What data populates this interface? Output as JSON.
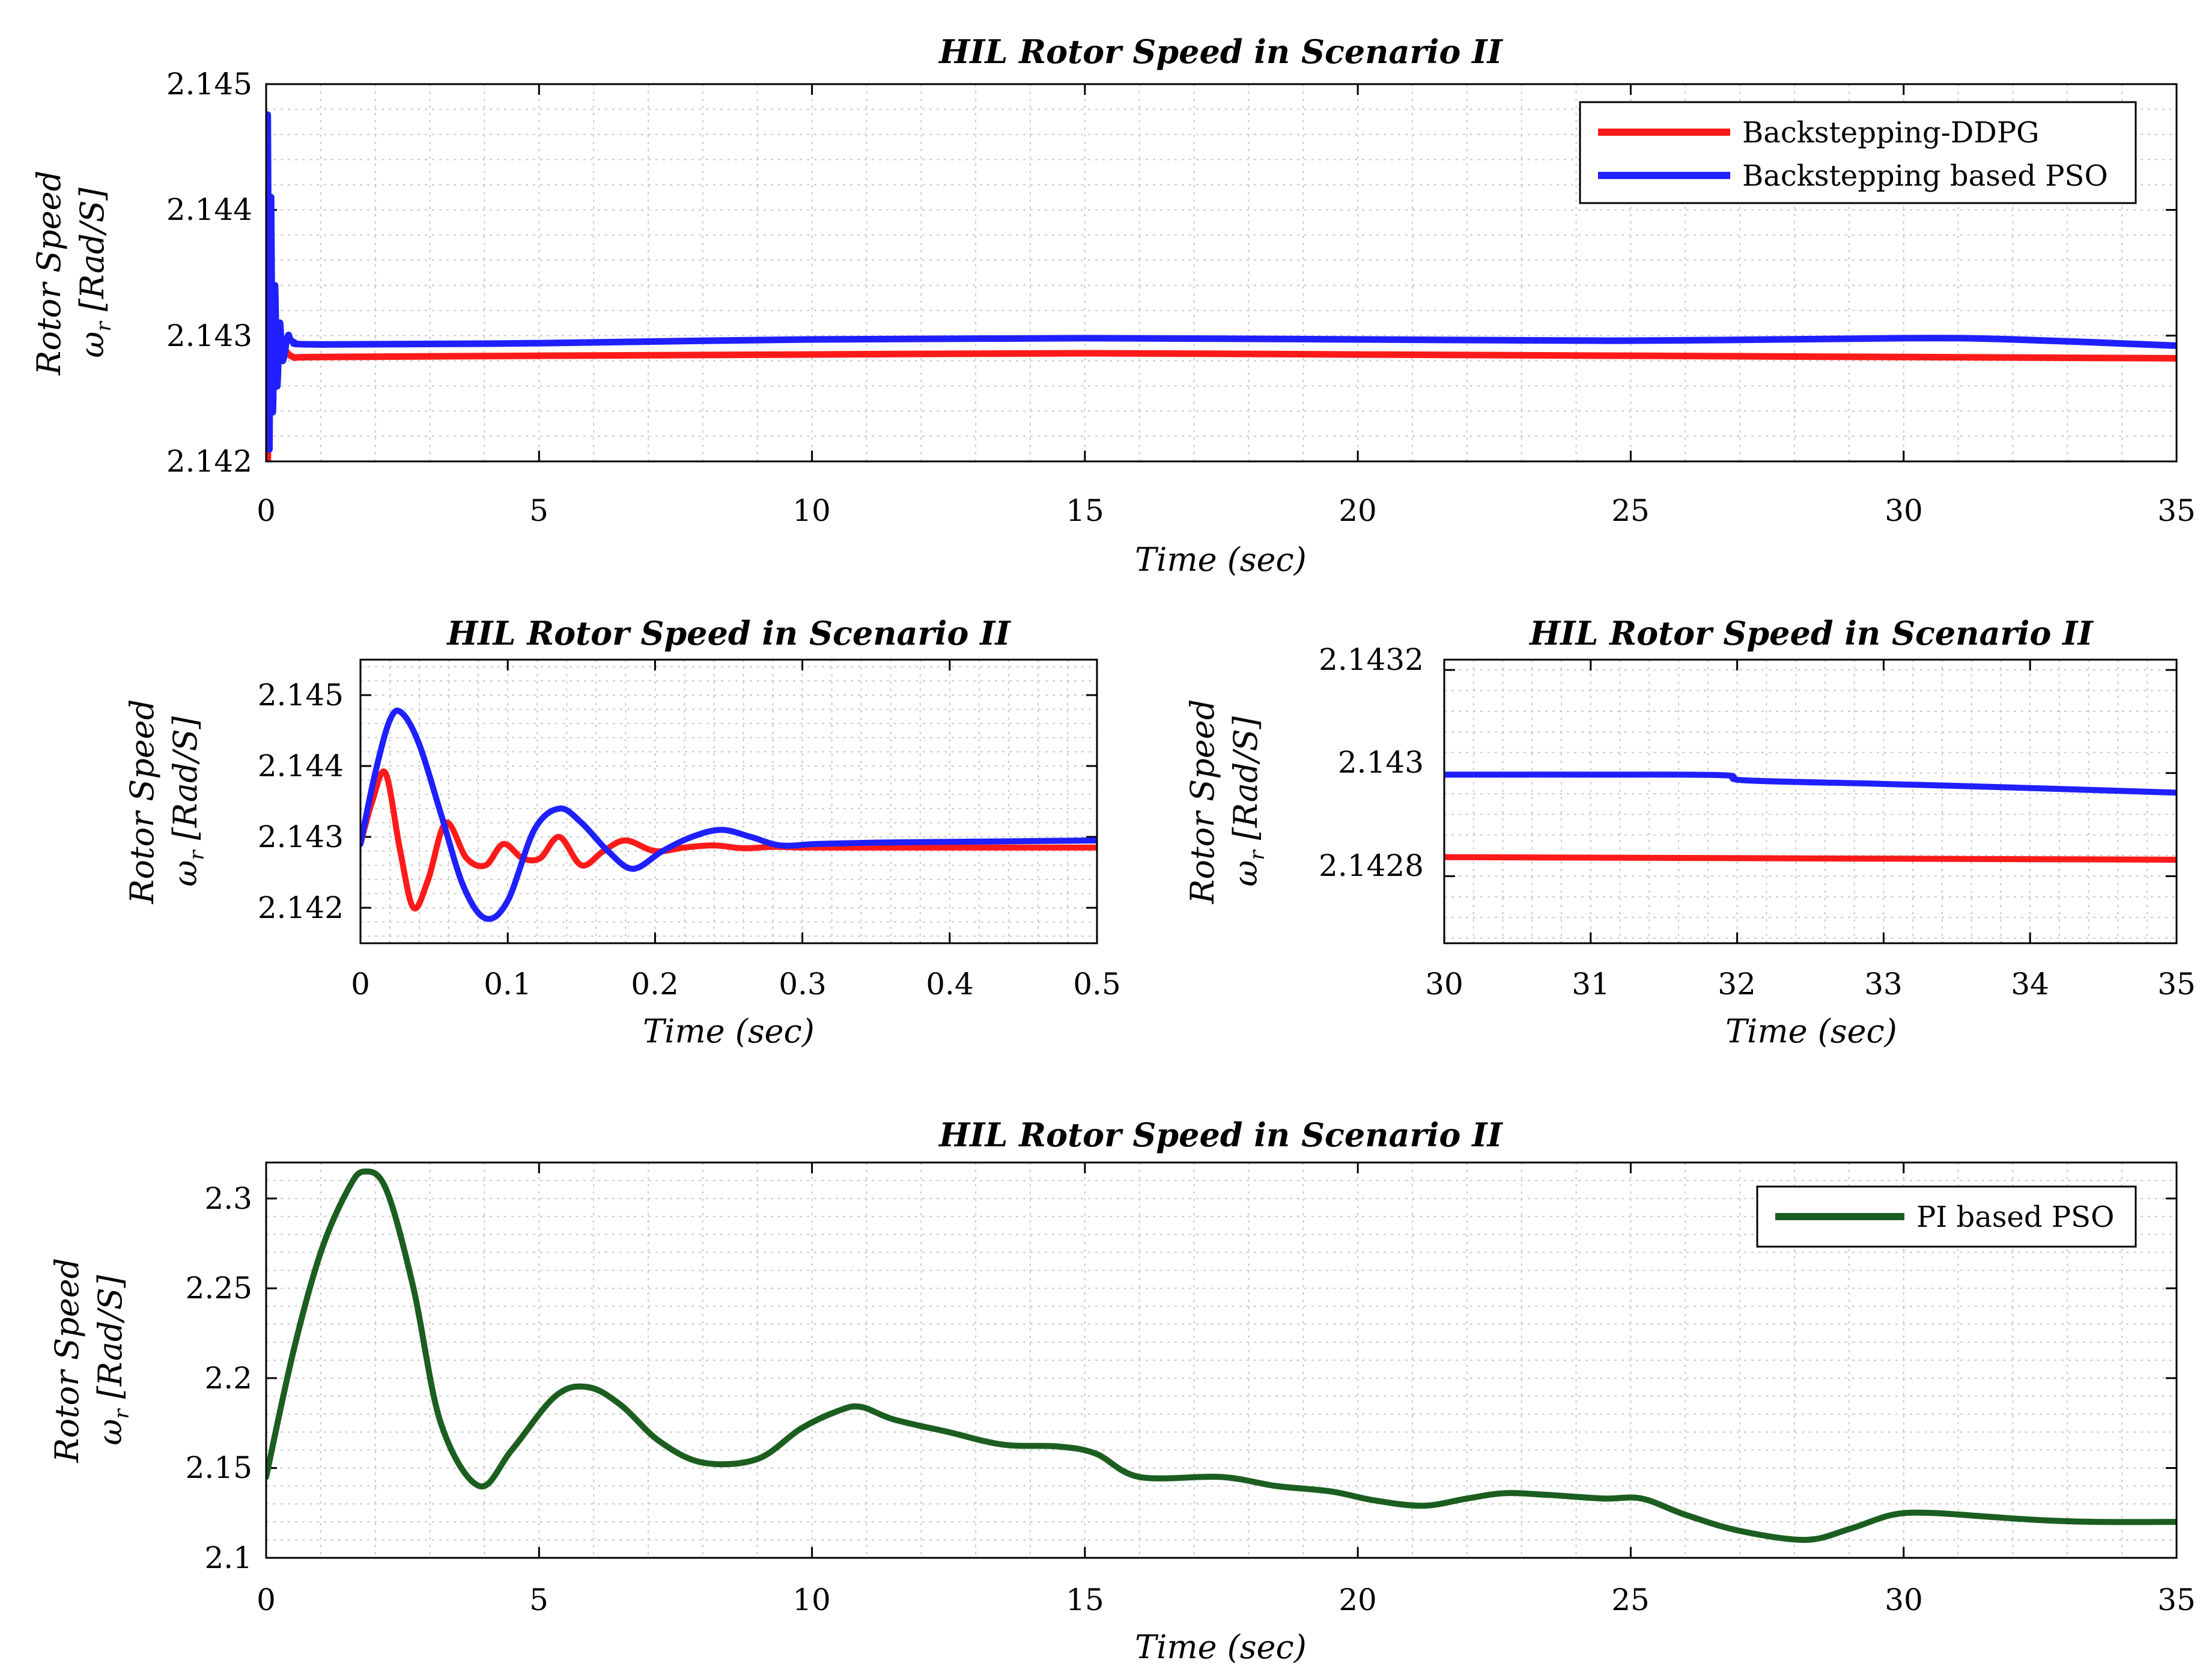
{
  "colors": {
    "series_red": "#ff1a1a",
    "series_blue": "#1f1fff",
    "series_green": "#1b5e20",
    "axis": "#000000",
    "grid": "#c8c8c8"
  },
  "chart_data": [
    {
      "id": "top",
      "type": "line",
      "title": "HIL Rotor Speed in Scenario II",
      "xlabel": "Time (sec)",
      "ylabel": "Rotor Speed",
      "ylabel2": "ω",
      "ylabel2_sub": "r",
      "ylabel2_unit": " [Rad/S]",
      "xlim": [
        0,
        35
      ],
      "ylim": [
        2.142,
        2.145
      ],
      "xticks": [
        0,
        5,
        10,
        15,
        20,
        25,
        30,
        35
      ],
      "xtick_labels": [
        "0",
        "5",
        "10",
        "15",
        "20",
        "25",
        "30",
        "35"
      ],
      "yticks": [
        2.142,
        2.143,
        2.144,
        2.145
      ],
      "ytick_labels": [
        "2.142",
        "2.143",
        "2.144",
        "2.145"
      ],
      "grid": true,
      "legend_position": "top-right",
      "series": [
        {
          "name": "Backstepping-DDPG",
          "color": "#ff1a1a",
          "x": [
            0,
            0.03,
            0.06,
            0.1,
            0.15,
            0.2,
            0.3,
            0.5,
            1,
            5,
            10,
            15,
            20,
            25,
            30,
            35
          ],
          "y": [
            2.1429,
            2.142,
            2.1433,
            2.1426,
            2.1431,
            2.1428,
            2.1429,
            2.14283,
            2.14283,
            2.14284,
            2.14285,
            2.14286,
            2.14285,
            2.14284,
            2.14283,
            2.14282
          ]
        },
        {
          "name": "Backstepping based PSO",
          "color": "#1f1fff",
          "x": [
            0,
            0.03,
            0.06,
            0.09,
            0.12,
            0.16,
            0.2,
            0.25,
            0.3,
            0.4,
            0.5,
            1,
            5,
            10,
            15,
            20,
            25,
            30,
            32,
            35
          ],
          "y": [
            2.1429,
            2.14475,
            2.1421,
            2.1441,
            2.1424,
            2.1434,
            2.1426,
            2.1431,
            2.1428,
            2.143,
            2.14295,
            2.14293,
            2.14294,
            2.14297,
            2.14298,
            2.14297,
            2.14296,
            2.14298,
            2.14297,
            2.14292
          ]
        }
      ]
    },
    {
      "id": "zoom-start",
      "type": "line",
      "title": "HIL Rotor Speed in Scenario II",
      "xlabel": "Time (sec)",
      "ylabel": "Rotor Speed",
      "ylabel2": "ω",
      "ylabel2_sub": "r",
      "ylabel2_unit": " [Rad/S]",
      "xlim": [
        0,
        0.5
      ],
      "ylim": [
        2.1415,
        2.1455
      ],
      "xticks": [
        0,
        0.1,
        0.2,
        0.3,
        0.4,
        0.5
      ],
      "xtick_labels": [
        "0",
        "0.1",
        "0.2",
        "0.3",
        "0.4",
        "0.5"
      ],
      "yticks": [
        2.142,
        2.143,
        2.144,
        2.145
      ],
      "ytick_labels": [
        "2.142",
        "2.143",
        "2.144",
        "2.145"
      ],
      "grid": true,
      "series": [
        {
          "name": "Backstepping-DDPG",
          "color": "#ff1a1a",
          "x": [
            0,
            0.008,
            0.017,
            0.027,
            0.036,
            0.046,
            0.058,
            0.072,
            0.085,
            0.097,
            0.11,
            0.122,
            0.135,
            0.15,
            0.165,
            0.18,
            0.2,
            0.22,
            0.24,
            0.26,
            0.28,
            0.3,
            0.35,
            0.4,
            0.45,
            0.5
          ],
          "y": [
            2.1429,
            2.1435,
            2.1439,
            2.1428,
            2.142,
            2.1424,
            2.1432,
            2.1427,
            2.1426,
            2.1429,
            2.1427,
            2.1427,
            2.143,
            2.1426,
            2.1428,
            2.14295,
            2.1428,
            2.14285,
            2.14288,
            2.14284,
            2.14286,
            2.14285,
            2.14285,
            2.14285,
            2.14285,
            2.14285
          ]
        },
        {
          "name": "Backstepping based PSO",
          "color": "#1f1fff",
          "x": [
            0,
            0.01,
            0.02,
            0.028,
            0.04,
            0.055,
            0.07,
            0.085,
            0.1,
            0.118,
            0.135,
            0.15,
            0.168,
            0.185,
            0.205,
            0.225,
            0.245,
            0.265,
            0.285,
            0.31,
            0.35,
            0.4,
            0.45,
            0.5
          ],
          "y": [
            2.1429,
            2.1439,
            2.14465,
            2.14475,
            2.1443,
            2.1433,
            2.1423,
            2.14185,
            2.1421,
            2.1431,
            2.1434,
            2.1432,
            2.1428,
            2.14255,
            2.1428,
            2.143,
            2.1431,
            2.143,
            2.14288,
            2.1429,
            2.14292,
            2.14293,
            2.14294,
            2.14295
          ]
        }
      ]
    },
    {
      "id": "zoom-end",
      "type": "line",
      "title": "HIL Rotor Speed in Scenario II",
      "xlabel": "Time (sec)",
      "ylabel": "Rotor Speed",
      "ylabel2": "ω",
      "ylabel2_sub": "r",
      "ylabel2_unit": " [Rad/S]",
      "xlim": [
        30,
        35
      ],
      "ylim": [
        2.14267,
        2.14322
      ],
      "xticks": [
        30,
        31,
        32,
        33,
        34,
        35
      ],
      "xtick_labels": [
        "30",
        "31",
        "32",
        "33",
        "34",
        "35"
      ],
      "yticks": [
        2.1428,
        2.143,
        2.1432
      ],
      "ytick_labels": [
        "2.1428",
        "2.143",
        "2.1432"
      ],
      "grid": true,
      "series": [
        {
          "name": "Backstepping-DDPG",
          "color": "#ff1a1a",
          "x": [
            30,
            31,
            32,
            33,
            34,
            35
          ],
          "y": [
            2.142837,
            2.142836,
            2.142835,
            2.142834,
            2.142833,
            2.142832
          ]
        },
        {
          "name": "Backstepping based PSO",
          "color": "#1f1fff",
          "x": [
            30,
            31,
            31.9,
            32.05,
            33,
            34,
            35
          ],
          "y": [
            2.142997,
            2.142997,
            2.142996,
            2.142986,
            2.142979,
            2.142971,
            2.142962
          ]
        }
      ]
    },
    {
      "id": "bottom",
      "type": "line",
      "title": "HIL Rotor Speed in Scenario II",
      "xlabel": "Time (sec)",
      "ylabel": "Rotor Speed",
      "ylabel2": "ω",
      "ylabel2_sub": "r",
      "ylabel2_unit": " [Rad/S]",
      "xlim": [
        0,
        35
      ],
      "ylim": [
        2.1,
        2.32
      ],
      "xticks": [
        0,
        5,
        10,
        15,
        20,
        25,
        30,
        35
      ],
      "xtick_labels": [
        "0",
        "5",
        "10",
        "15",
        "20",
        "25",
        "30",
        "35"
      ],
      "yticks": [
        2.1,
        2.15,
        2.2,
        2.25,
        2.3
      ],
      "ytick_labels": [
        "2.1",
        "2.15",
        "2.2",
        "2.25",
        "2.3"
      ],
      "grid": true,
      "legend_position": "top-right",
      "series": [
        {
          "name": "PI based PSO",
          "color": "#1b5e20",
          "x": [
            0,
            0.5,
            1.0,
            1.5,
            1.8,
            2.2,
            2.7,
            3.2,
            3.9,
            4.5,
            5.3,
            5.9,
            6.5,
            7.2,
            8.0,
            9.0,
            9.8,
            10.5,
            10.9,
            11.5,
            12.5,
            13.5,
            14.5,
            15.2,
            16.0,
            17.5,
            18.5,
            19.5,
            20.3,
            21.2,
            22.0,
            22.7,
            23.5,
            24.5,
            25.2,
            26.0,
            27.0,
            28.2,
            29.0,
            29.8,
            30.5,
            31.5,
            32.5,
            33.5,
            35.0
          ],
          "y": [
            2.145,
            2.215,
            2.27,
            2.305,
            2.315,
            2.305,
            2.25,
            2.175,
            2.14,
            2.16,
            2.19,
            2.195,
            2.185,
            2.165,
            2.153,
            2.155,
            2.172,
            2.182,
            2.184,
            2.177,
            2.17,
            2.163,
            2.162,
            2.158,
            2.145,
            2.145,
            2.14,
            2.137,
            2.132,
            2.129,
            2.133,
            2.136,
            2.135,
            2.133,
            2.133,
            2.124,
            2.115,
            2.11,
            2.116,
            2.124,
            2.125,
            2.123,
            2.121,
            2.12,
            2.12
          ]
        }
      ]
    }
  ]
}
